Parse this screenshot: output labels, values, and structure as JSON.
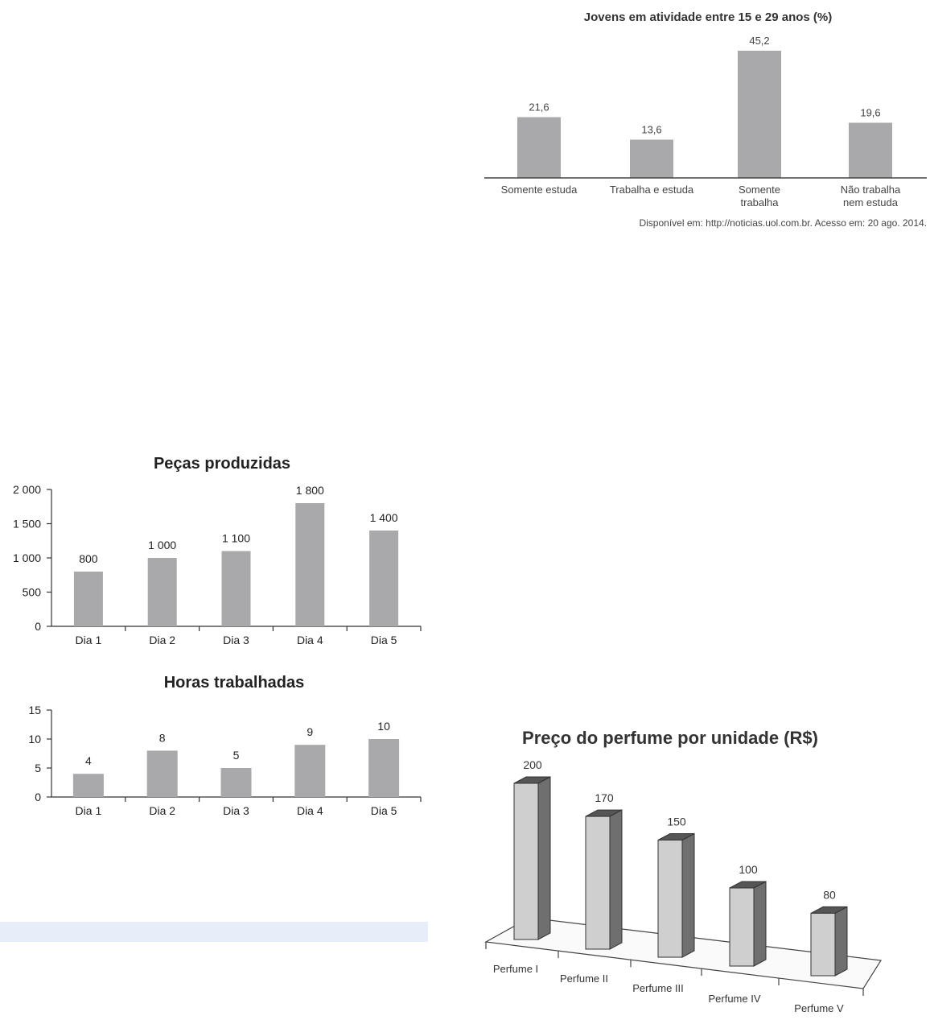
{
  "colors": {
    "bar": "#a9a9ab",
    "bar3d_front": "#cfcfcf",
    "bar3d_side": "#6f6f6f",
    "bar3d_top": "#555555",
    "axis": "#333333",
    "highlight": "#e7eefa"
  },
  "chart_data": [
    {
      "id": "jovens",
      "type": "bar",
      "title": "Jovens em atividade entre 15 e 29 anos (%)",
      "categories": [
        "Somente estuda",
        "Trabalha e estuda",
        "Somente trabalha",
        "Não trabalha nem estuda"
      ],
      "category_lines": [
        [
          "Somente estuda"
        ],
        [
          "Trabalha e estuda"
        ],
        [
          "Somente",
          "trabalha"
        ],
        [
          "Não trabalha",
          "nem estuda"
        ]
      ],
      "values": [
        21.6,
        13.6,
        45.2,
        19.6
      ],
      "value_labels": [
        "21,6",
        "13,6",
        "45,2",
        "19,6"
      ],
      "source": "Disponível em: http://noticias.uol.com.br. Acesso em: 20 ago. 2014.",
      "grid": false
    },
    {
      "id": "pecas",
      "type": "bar",
      "title": "Peças produzidas",
      "categories": [
        "Dia 1",
        "Dia 2",
        "Dia 3",
        "Dia 4",
        "Dia 5"
      ],
      "values": [
        800,
        1000,
        1100,
        1800,
        1400
      ],
      "value_labels": [
        "800",
        "1 000",
        "1 100",
        "1 800",
        "1 400"
      ],
      "yticks": [
        "0",
        "500",
        "1 000",
        "1 500",
        "2 000"
      ],
      "ylim": [
        0,
        2000
      ],
      "grid": false
    },
    {
      "id": "horas",
      "type": "bar",
      "title": "Horas trabalhadas",
      "categories": [
        "Dia 1",
        "Dia 2",
        "Dia 3",
        "Dia 4",
        "Dia 5"
      ],
      "values": [
        4,
        8,
        5,
        9,
        10
      ],
      "value_labels": [
        "4",
        "8",
        "5",
        "9",
        "10"
      ],
      "yticks": [
        "0",
        "5",
        "10",
        "15"
      ],
      "ylim": [
        0,
        15
      ],
      "grid": false
    },
    {
      "id": "perfume",
      "type": "bar",
      "title": "Preço do perfume por unidade (R$)",
      "categories": [
        "Perfume I",
        "Perfume II",
        "Perfume III",
        "Perfume IV",
        "Perfume V"
      ],
      "values": [
        200,
        170,
        150,
        100,
        80
      ],
      "value_labels": [
        "200",
        "170",
        "150",
        "100",
        "80"
      ],
      "style": "3d",
      "grid": false
    }
  ]
}
